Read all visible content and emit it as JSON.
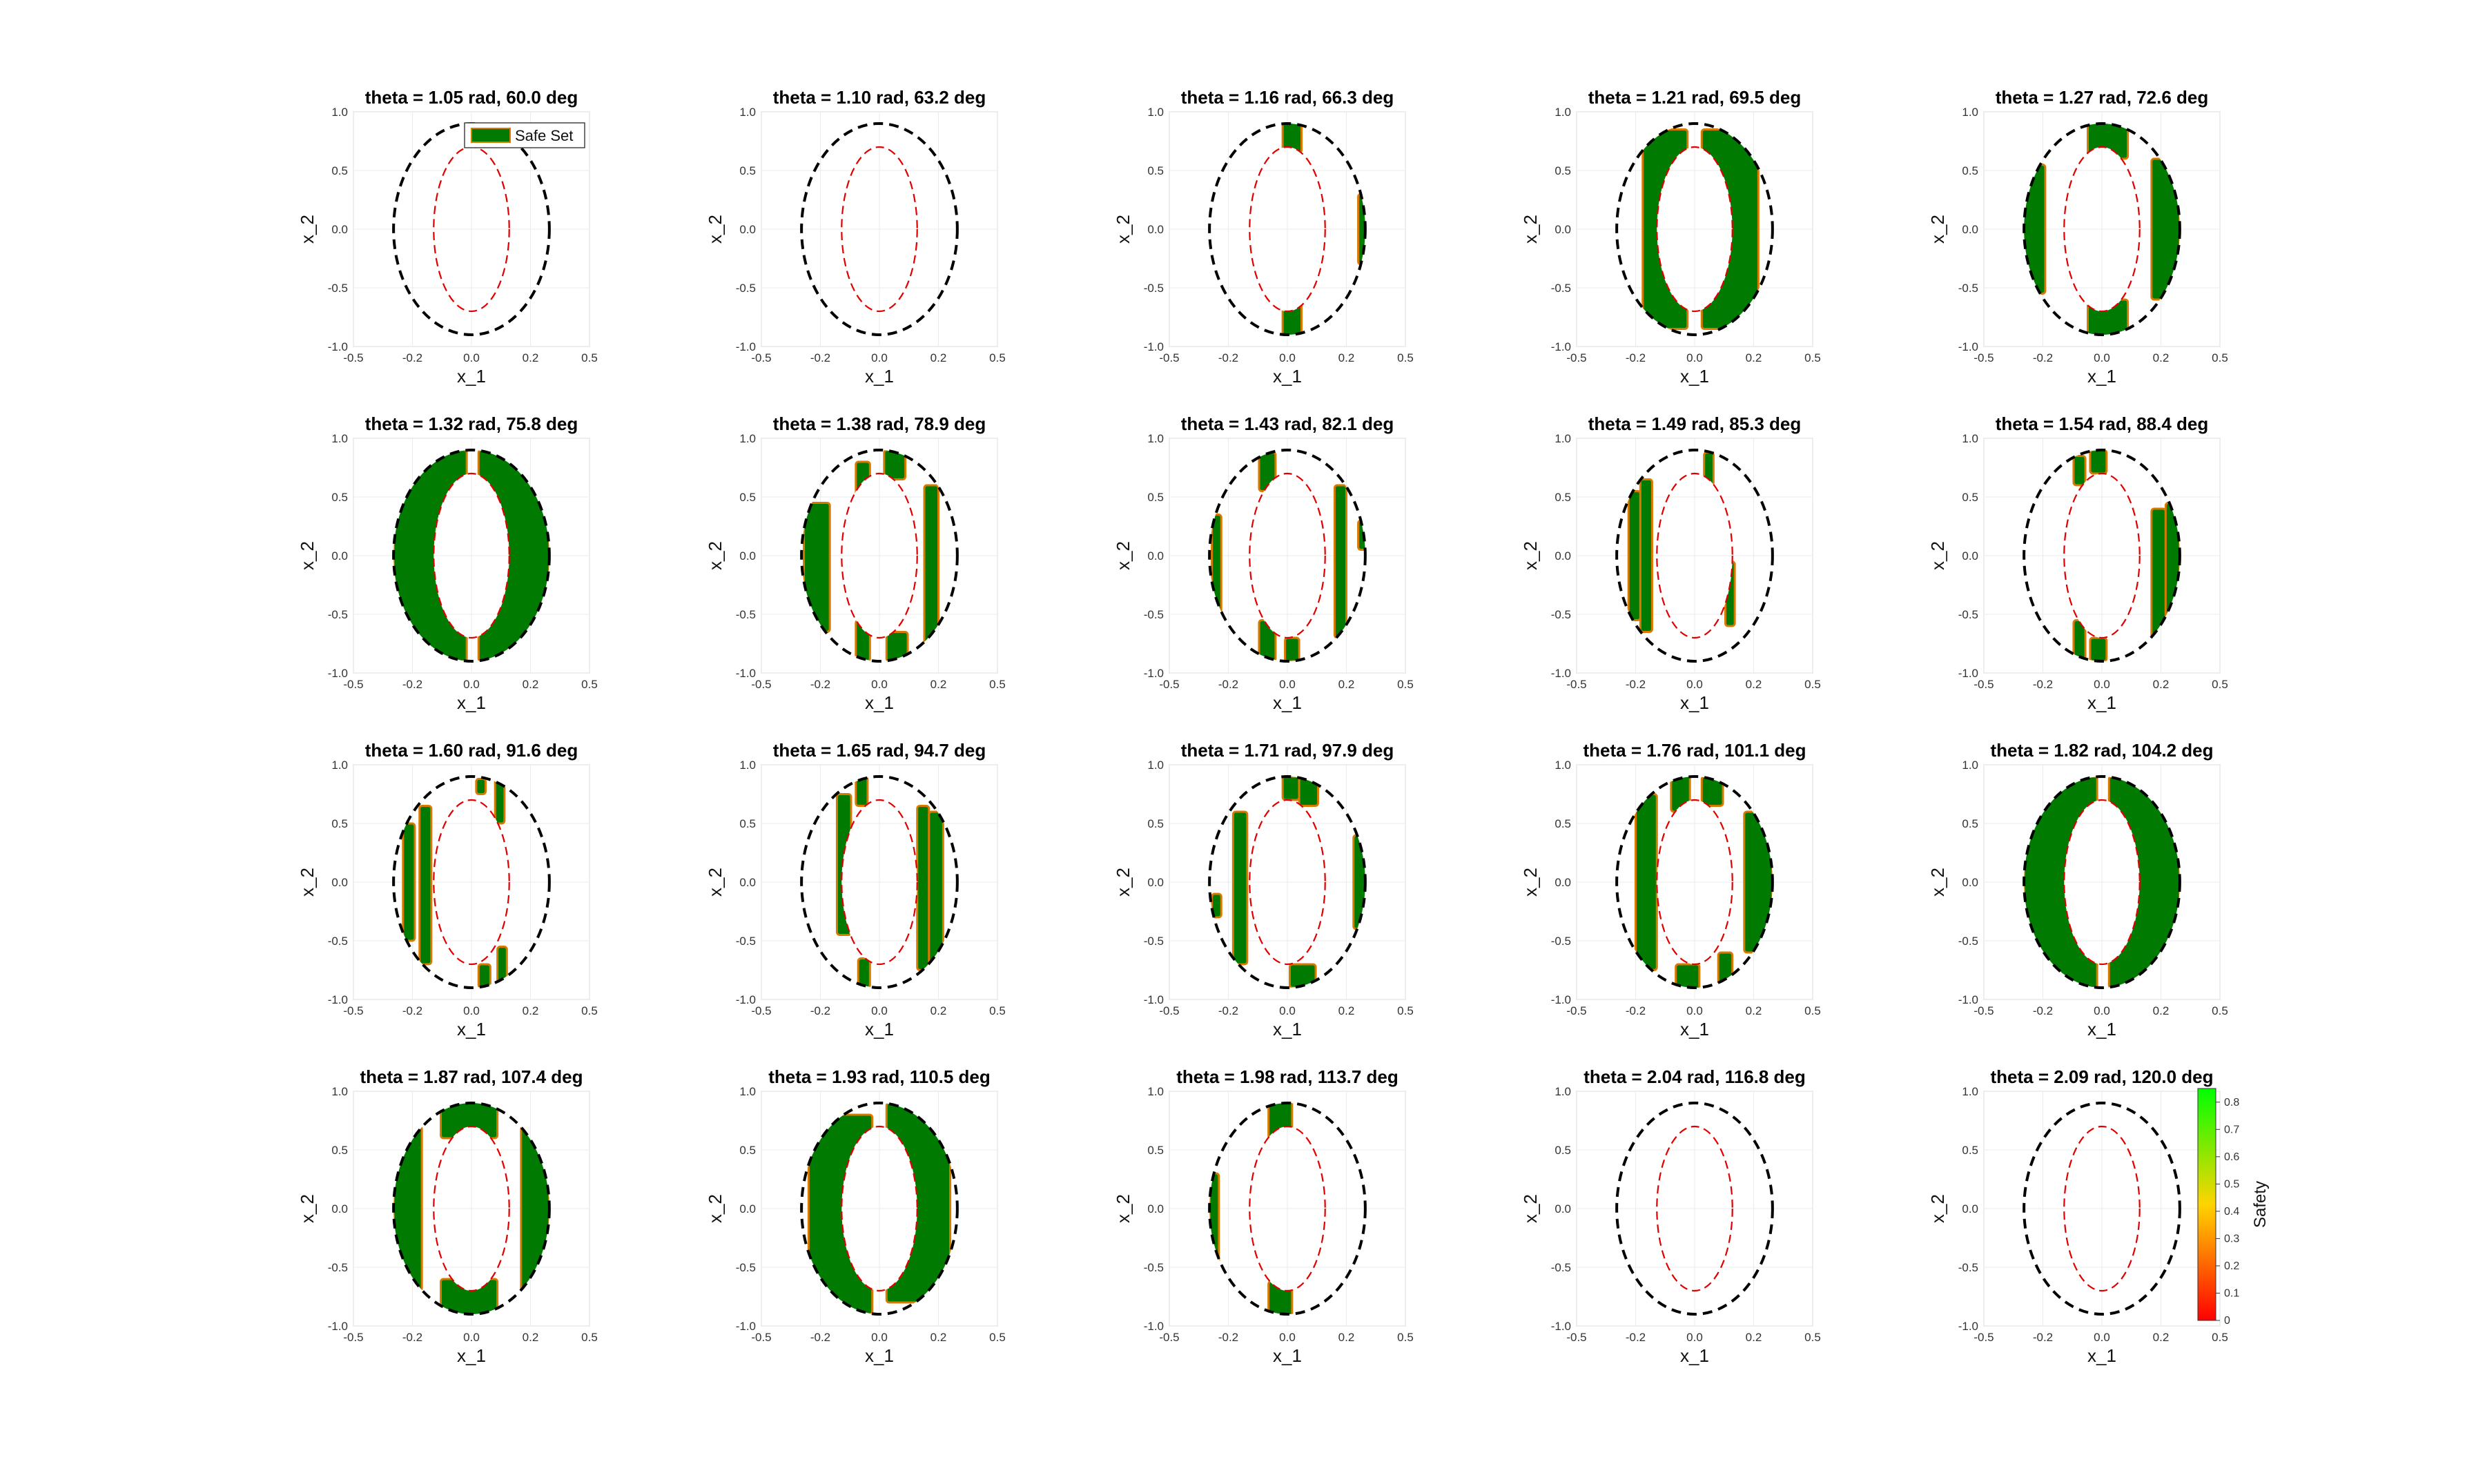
{
  "figure": {
    "colors": {
      "safe_fill": "#007a00",
      "safe_edge": "#d97a00",
      "outer_circle": "#000000",
      "inner_ellipse": "#e00000",
      "grid": "#ebebeb",
      "colorbar_high": "#00ff00",
      "colorbar_mid": "#ffd400",
      "colorbar_low": "#ff0000"
    },
    "colorbar": {
      "label": "Safety",
      "ticks": [
        "0",
        "0.1",
        "0.2",
        "0.3",
        "0.4",
        "0.5",
        "0.6",
        "0.7",
        "0.8"
      ],
      "range": [
        0,
        0.85
      ]
    }
  },
  "chart_data": {
    "type": "contour-grid",
    "rows": 4,
    "cols": 5,
    "xlabel": "x_1",
    "ylabel": "x_2",
    "xlim": [
      -0.5,
      0.5
    ],
    "ylim": [
      -1.0,
      1.0
    ],
    "xticks": [
      "-0.5",
      "-0.2",
      "0.0",
      "0.2",
      "0.5"
    ],
    "yticks": [
      "1.0",
      "0.5",
      "0.0",
      "-0.5",
      "-1.0"
    ],
    "outer_boundary": {
      "type": "ellipse",
      "rx": 0.33,
      "ry": 0.9,
      "style": "black dashed"
    },
    "inner_boundary": {
      "type": "ellipse",
      "rx": 0.16,
      "ry": 0.7,
      "style": "red dashed"
    },
    "legend_entry": "Safe Set",
    "panels": [
      {
        "title": "theta = 1.05 rad, 60.0 deg",
        "safe_regions": []
      },
      {
        "title": "theta = 1.10 rad, 63.2 deg",
        "safe_regions": []
      },
      {
        "title": "theta = 1.16 rad, 66.3 deg",
        "safe_regions": [
          [
            -0.02,
            0.06,
            0.65,
            0.92
          ],
          [
            -0.02,
            0.06,
            -0.92,
            -0.62
          ],
          [
            0.3,
            0.35,
            -0.3,
            0.3
          ]
        ]
      },
      {
        "title": "theta = 1.21 rad, 69.5 deg",
        "safe_regions": [
          [
            -0.22,
            -0.03,
            -0.85,
            0.85
          ],
          [
            0.03,
            0.27,
            -0.85,
            0.85
          ]
        ]
      },
      {
        "title": "theta = 1.27 rad, 72.6 deg",
        "safe_regions": [
          [
            -0.06,
            0.11,
            0.6,
            0.92
          ],
          [
            -0.06,
            0.11,
            -0.92,
            -0.6
          ],
          [
            -0.34,
            -0.24,
            -0.55,
            0.55
          ],
          [
            0.21,
            0.33,
            -0.6,
            0.6
          ]
        ]
      },
      {
        "title": "theta = 1.32 rad, 75.8 deg",
        "safe_regions": [
          [
            -0.33,
            -0.02,
            -0.9,
            0.9
          ],
          [
            0.03,
            0.33,
            -0.9,
            0.9
          ]
        ]
      },
      {
        "title": "theta = 1.38 rad, 78.9 deg",
        "safe_regions": [
          [
            -0.32,
            -0.21,
            -0.65,
            0.45
          ],
          [
            -0.1,
            -0.04,
            0.45,
            0.8
          ],
          [
            -0.1,
            -0.04,
            -0.9,
            -0.55
          ],
          [
            0.02,
            0.11,
            0.65,
            0.9
          ],
          [
            0.03,
            0.12,
            -0.9,
            -0.65
          ],
          [
            0.19,
            0.25,
            -0.75,
            0.6
          ]
        ]
      },
      {
        "title": "theta = 1.43 rad, 82.1 deg",
        "safe_regions": [
          [
            -0.32,
            -0.28,
            -0.5,
            0.35
          ],
          [
            -0.12,
            -0.05,
            0.55,
            0.88
          ],
          [
            -0.12,
            -0.05,
            -0.9,
            -0.55
          ],
          [
            -0.01,
            0.05,
            -0.9,
            -0.7
          ],
          [
            0.2,
            0.25,
            -0.7,
            0.6
          ],
          [
            0.3,
            0.35,
            0.05,
            0.3
          ]
        ]
      },
      {
        "title": "theta = 1.49 rad, 85.3 deg",
        "safe_regions": [
          [
            -0.28,
            -0.23,
            -0.55,
            0.55
          ],
          [
            -0.23,
            -0.18,
            -0.65,
            0.65
          ],
          [
            0.04,
            0.08,
            0.6,
            0.88
          ],
          [
            0.13,
            0.17,
            -0.6,
            -0.05
          ]
        ]
      },
      {
        "title": "theta = 1.54 rad, 88.4 deg",
        "safe_regions": [
          [
            -0.12,
            -0.07,
            0.6,
            0.85
          ],
          [
            -0.05,
            0.02,
            0.7,
            0.9
          ],
          [
            -0.12,
            -0.07,
            -0.9,
            -0.55
          ],
          [
            -0.05,
            0.02,
            -0.9,
            -0.7
          ],
          [
            0.21,
            0.27,
            -0.7,
            0.4
          ],
          [
            0.27,
            0.33,
            -0.5,
            0.45
          ]
        ]
      },
      {
        "title": "theta = 1.60 rad, 91.6 deg",
        "safe_regions": [
          [
            -0.29,
            -0.24,
            -0.5,
            0.5
          ],
          [
            -0.22,
            -0.17,
            -0.7,
            0.65
          ],
          [
            0.02,
            0.06,
            0.75,
            0.88
          ],
          [
            0.1,
            0.14,
            0.5,
            0.88
          ],
          [
            0.03,
            0.08,
            -0.9,
            -0.7
          ],
          [
            0.11,
            0.15,
            -0.9,
            -0.55
          ]
        ]
      },
      {
        "title": "theta = 1.65 rad, 94.7 deg",
        "safe_regions": [
          [
            -0.18,
            -0.12,
            -0.45,
            0.75
          ],
          [
            -0.1,
            -0.05,
            0.65,
            0.9
          ],
          [
            -0.09,
            -0.04,
            -0.9,
            -0.65
          ],
          [
            0.16,
            0.21,
            -0.75,
            0.65
          ],
          [
            0.21,
            0.27,
            -0.7,
            0.6
          ]
        ]
      },
      {
        "title": "theta = 1.71 rad, 97.9 deg",
        "safe_regions": [
          [
            -0.23,
            -0.17,
            -0.7,
            0.6
          ],
          [
            -0.32,
            -0.28,
            -0.3,
            -0.1
          ],
          [
            -0.02,
            0.05,
            0.7,
            0.9
          ],
          [
            0.05,
            0.13,
            0.65,
            0.9
          ],
          [
            0.01,
            0.12,
            -0.9,
            -0.7
          ],
          [
            0.28,
            0.34,
            -0.4,
            0.4
          ]
        ]
      },
      {
        "title": "theta = 1.76 rad, 101.1 deg",
        "safe_regions": [
          [
            -0.25,
            -0.16,
            -0.75,
            0.75
          ],
          [
            -0.1,
            -0.02,
            0.6,
            0.92
          ],
          [
            -0.08,
            0.02,
            -0.92,
            -0.7
          ],
          [
            0.03,
            0.12,
            0.65,
            0.9
          ],
          [
            0.1,
            0.16,
            -0.88,
            -0.6
          ],
          [
            0.21,
            0.33,
            -0.6,
            0.6
          ]
        ]
      },
      {
        "title": "theta = 1.82 rad, 104.2 deg",
        "safe_regions": [
          [
            -0.33,
            -0.02,
            -0.9,
            0.9
          ],
          [
            0.03,
            0.33,
            -0.9,
            0.9
          ]
        ]
      },
      {
        "title": "theta = 1.87 rad, 107.4 deg",
        "safe_regions": [
          [
            -0.33,
            -0.21,
            -0.7,
            0.7
          ],
          [
            -0.13,
            0.11,
            0.6,
            0.92
          ],
          [
            -0.13,
            0.11,
            -0.92,
            -0.6
          ],
          [
            0.21,
            0.33,
            -0.7,
            0.7
          ]
        ]
      },
      {
        "title": "theta = 1.93 rad, 110.5 deg",
        "safe_regions": [
          [
            -0.3,
            -0.03,
            -0.9,
            0.8
          ],
          [
            0.03,
            0.3,
            -0.8,
            0.9
          ]
        ]
      },
      {
        "title": "theta = 1.98 rad, 113.7 deg",
        "safe_regions": [
          [
            -0.08,
            0.02,
            0.6,
            0.92
          ],
          [
            -0.08,
            0.02,
            -0.92,
            -0.62
          ],
          [
            -0.33,
            -0.29,
            -0.55,
            0.3
          ]
        ]
      },
      {
        "title": "theta = 2.04 rad, 116.8 deg",
        "safe_regions": []
      },
      {
        "title": "theta = 2.09 rad, 120.0 deg",
        "safe_regions": []
      }
    ]
  }
}
